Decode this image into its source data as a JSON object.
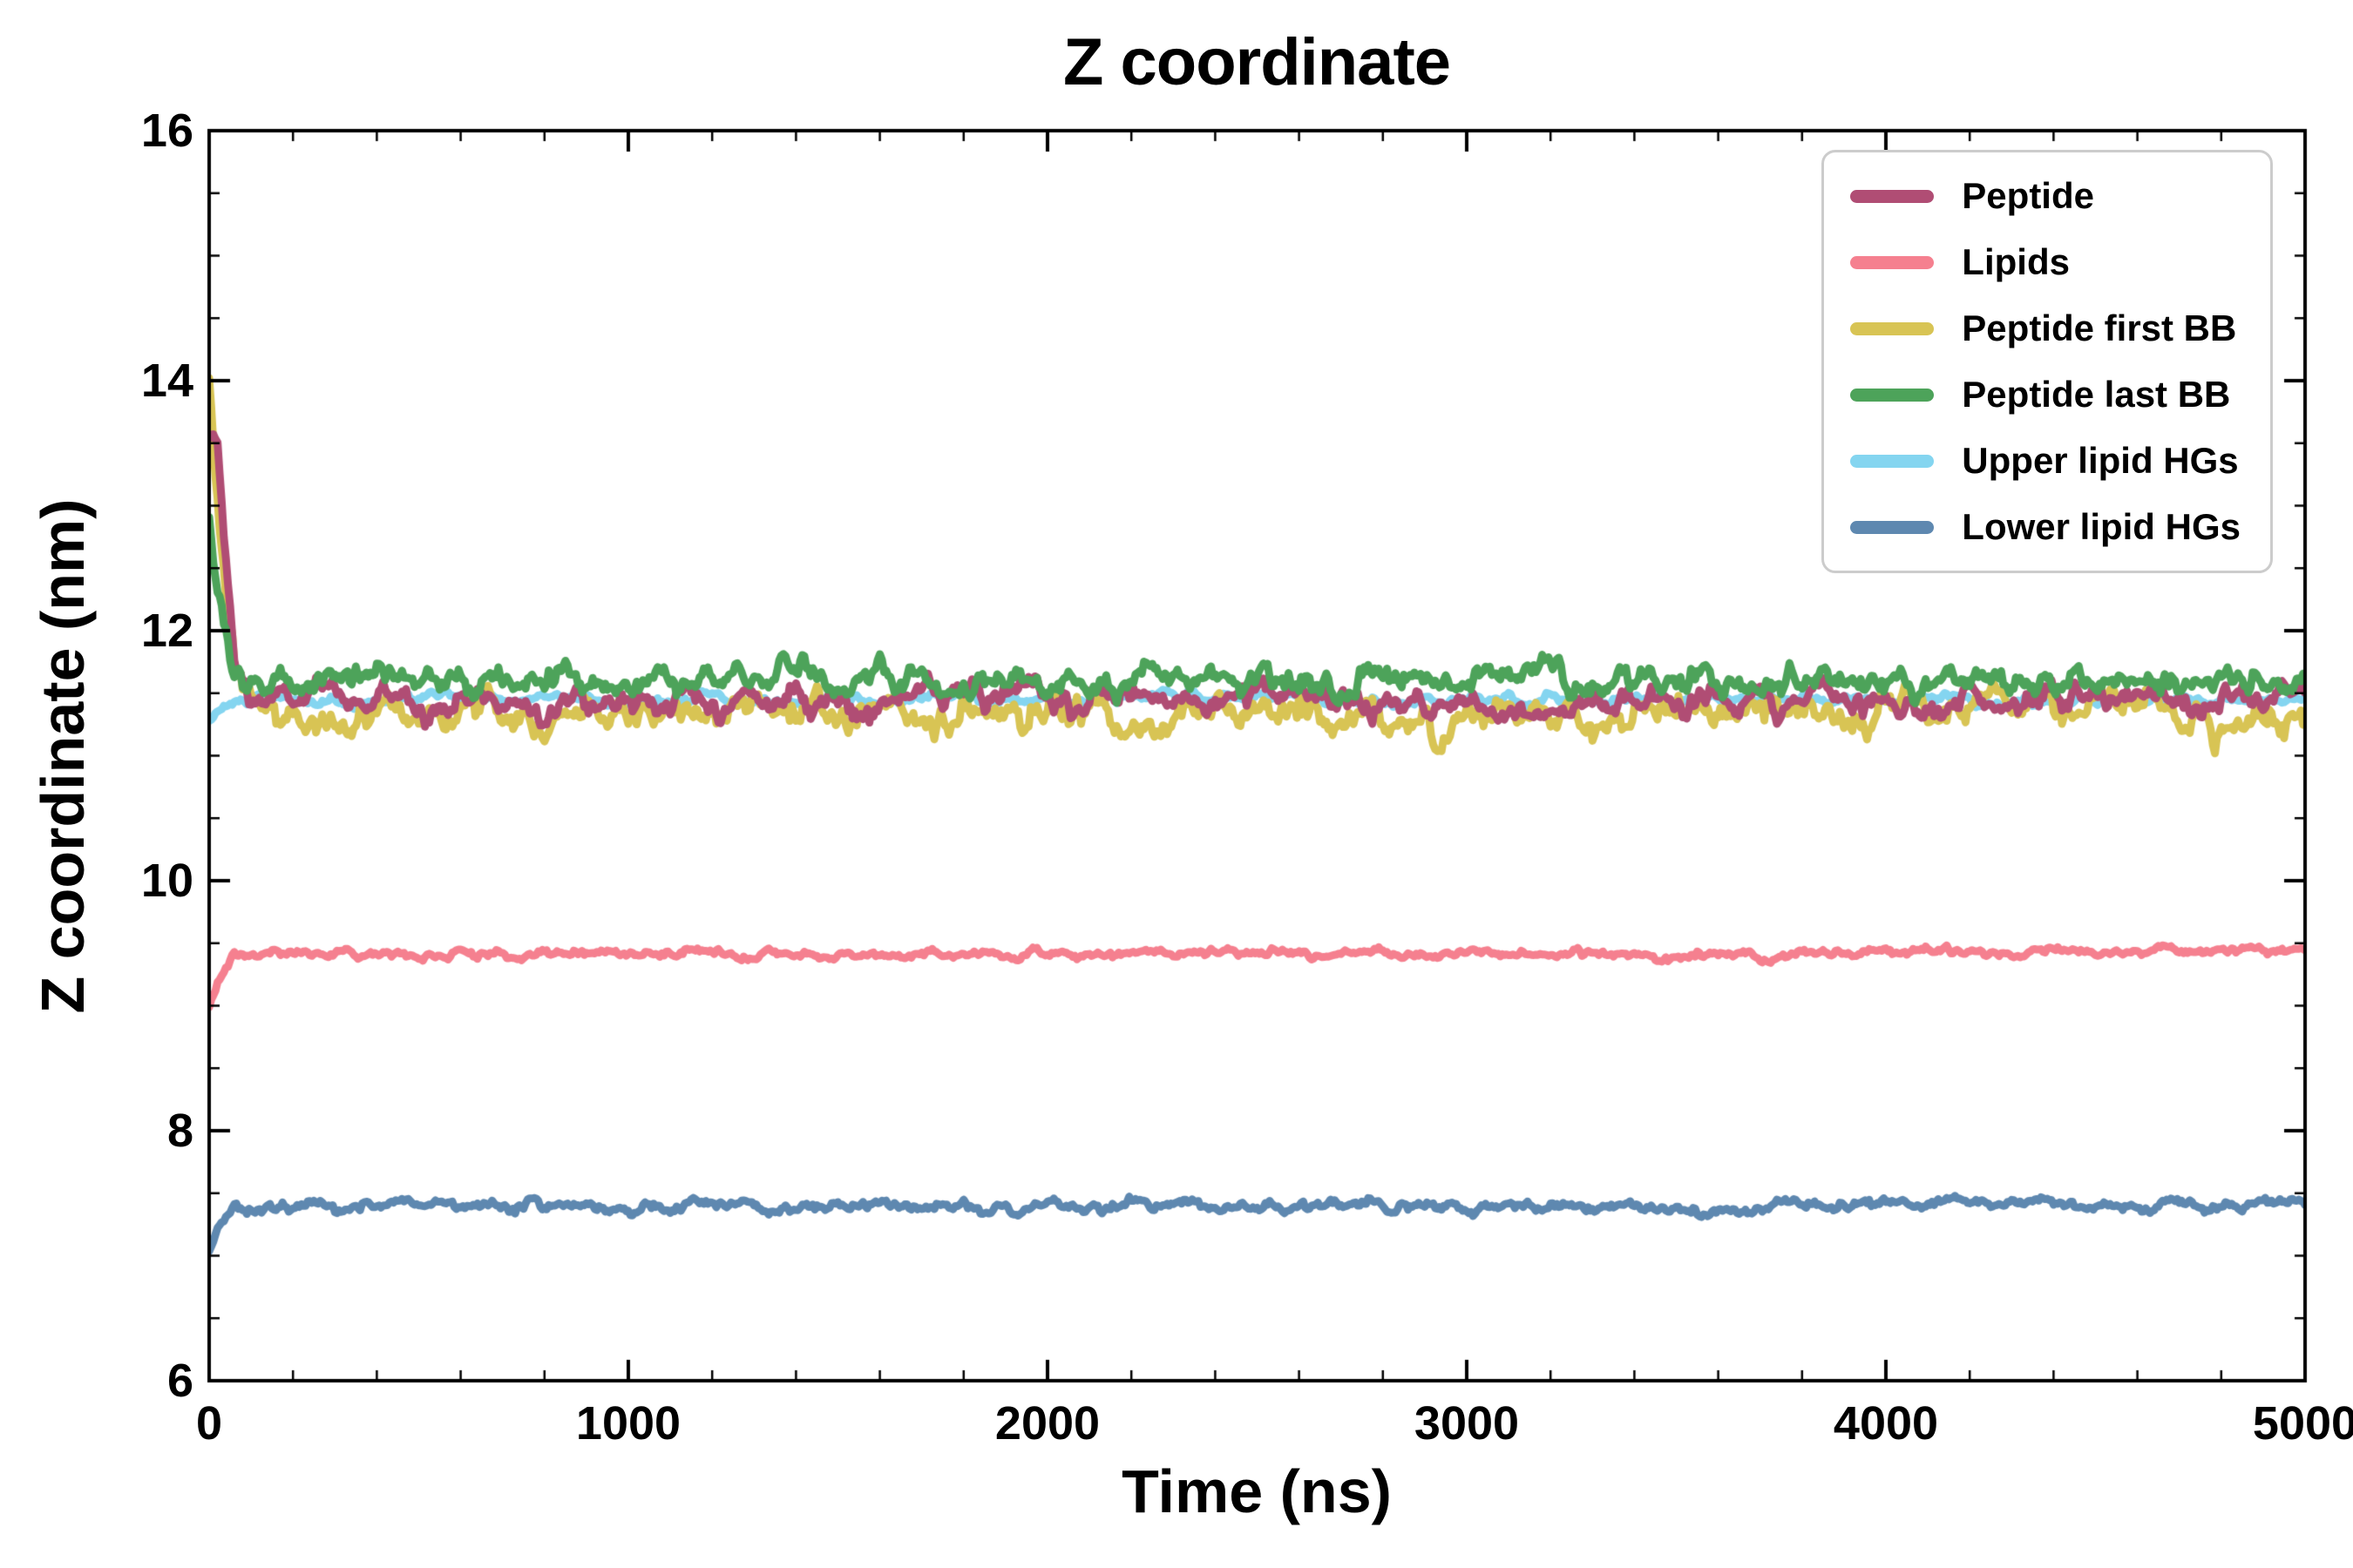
{
  "figure": {
    "title": "Z coordinate",
    "xlabel": "Time (ns)",
    "ylabel": "Z coordinate (nm)"
  },
  "chart_data": {
    "type": "line",
    "title": "Z coordinate",
    "xlabel": "Time (ns)",
    "ylabel": "Z coordinate (nm)",
    "xlim": [
      0,
      5000
    ],
    "ylim": [
      6,
      16
    ],
    "xticks": [
      0,
      1000,
      2000,
      3000,
      4000,
      5000
    ],
    "yticks": [
      6,
      8,
      10,
      12,
      14,
      16
    ],
    "x_minor_step": 200,
    "y_minor_step": 0.5,
    "grid": false,
    "legend_position": "upper right",
    "background": "#ffffff",
    "axis_color": "#000000",
    "sample_x": [
      0,
      20,
      60,
      100,
      500,
      1000,
      1500,
      2000,
      2500,
      3000,
      3500,
      4000,
      4500,
      5000
    ],
    "series": [
      {
        "name": "Peptide",
        "color": "#b04d74",
        "linewidth": 9,
        "noise": 0.07,
        "z": 4,
        "sample_y": [
          13.6,
          13.4,
          11.7,
          11.45,
          11.45,
          11.45,
          11.45,
          11.45,
          11.45,
          11.4,
          11.45,
          11.45,
          11.45,
          11.45
        ]
      },
      {
        "name": "Lipids",
        "color": "#f5808f",
        "linewidth": 9,
        "noise": 0.022,
        "z": 1,
        "sample_y": [
          9.0,
          9.2,
          9.4,
          9.42,
          9.42,
          9.42,
          9.4,
          9.42,
          9.42,
          9.42,
          9.4,
          9.43,
          9.44,
          9.45
        ]
      },
      {
        "name": "Peptide first BB",
        "color": "#d8c454",
        "linewidth": 9,
        "noise": 0.09,
        "z": 3,
        "sample_y": [
          14.05,
          13.0,
          11.5,
          11.35,
          11.35,
          11.35,
          11.35,
          11.3,
          11.35,
          11.3,
          11.3,
          11.35,
          11.35,
          11.3
        ]
      },
      {
        "name": "Peptide last BB",
        "color": "#4da35a",
        "linewidth": 9,
        "noise": 0.07,
        "z": 5,
        "sample_y": [
          12.9,
          12.3,
          11.7,
          11.6,
          11.6,
          11.6,
          11.6,
          11.6,
          11.6,
          11.6,
          11.62,
          11.6,
          11.6,
          11.58
        ]
      },
      {
        "name": "Upper lipid HGs",
        "color": "#84d5f0",
        "linewidth": 9,
        "noise": 0.025,
        "z": 2,
        "sample_y": [
          11.3,
          11.35,
          11.45,
          11.45,
          11.45,
          11.45,
          11.45,
          11.45,
          11.45,
          11.45,
          11.45,
          11.45,
          11.45,
          11.45
        ]
      },
      {
        "name": "Lower lipid HGs",
        "color": "#5e88b0",
        "linewidth": 9,
        "noise": 0.03,
        "z": 2,
        "sample_y": [
          7.05,
          7.25,
          7.38,
          7.4,
          7.4,
          7.4,
          7.4,
          7.4,
          7.4,
          7.4,
          7.38,
          7.42,
          7.42,
          7.42
        ]
      }
    ]
  }
}
